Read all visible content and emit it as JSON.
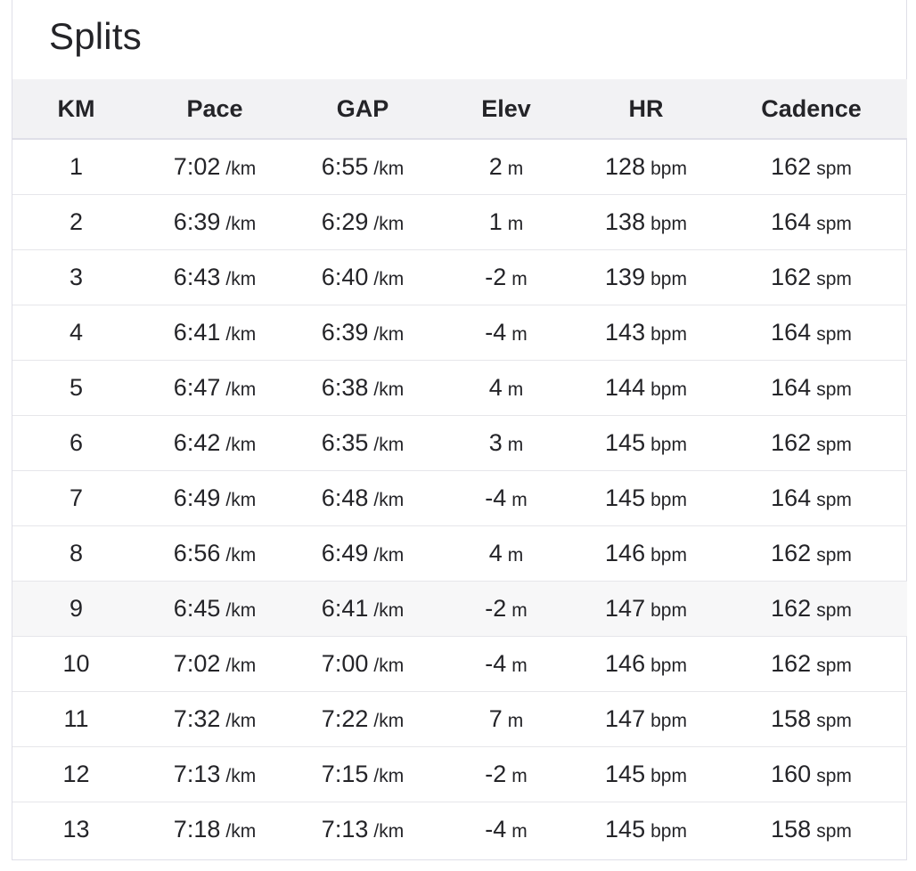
{
  "title": "Splits",
  "columns": [
    "KM",
    "Pace",
    "GAP",
    "Elev",
    "HR",
    "Cadence"
  ],
  "units": {
    "pace": "/km",
    "gap": "/km",
    "elev": "m",
    "hr": "bpm",
    "cadence": "spm"
  },
  "rows": [
    {
      "km": "1",
      "pace": "7:02",
      "gap": "6:55",
      "elev": "2",
      "hr": "128",
      "cadence": "162"
    },
    {
      "km": "2",
      "pace": "6:39",
      "gap": "6:29",
      "elev": "1",
      "hr": "138",
      "cadence": "164"
    },
    {
      "km": "3",
      "pace": "6:43",
      "gap": "6:40",
      "elev": "-2",
      "hr": "139",
      "cadence": "162"
    },
    {
      "km": "4",
      "pace": "6:41",
      "gap": "6:39",
      "elev": "-4",
      "hr": "143",
      "cadence": "164"
    },
    {
      "km": "5",
      "pace": "6:47",
      "gap": "6:38",
      "elev": "4",
      "hr": "144",
      "cadence": "164"
    },
    {
      "km": "6",
      "pace": "6:42",
      "gap": "6:35",
      "elev": "3",
      "hr": "145",
      "cadence": "162"
    },
    {
      "km": "7",
      "pace": "6:49",
      "gap": "6:48",
      "elev": "-4",
      "hr": "145",
      "cadence": "164"
    },
    {
      "km": "8",
      "pace": "6:56",
      "gap": "6:49",
      "elev": "4",
      "hr": "146",
      "cadence": "162"
    },
    {
      "km": "9",
      "pace": "6:45",
      "gap": "6:41",
      "elev": "-2",
      "hr": "147",
      "cadence": "162"
    },
    {
      "km": "10",
      "pace": "7:02",
      "gap": "7:00",
      "elev": "-4",
      "hr": "146",
      "cadence": "162"
    },
    {
      "km": "11",
      "pace": "7:32",
      "gap": "7:22",
      "elev": "7",
      "hr": "147",
      "cadence": "158"
    },
    {
      "km": "12",
      "pace": "7:13",
      "gap": "7:15",
      "elev": "-2",
      "hr": "145",
      "cadence": "160"
    },
    {
      "km": "13",
      "pace": "7:18",
      "gap": "7:13",
      "elev": "-4",
      "hr": "145",
      "cadence": "158"
    }
  ],
  "highlighted_row": 9
}
